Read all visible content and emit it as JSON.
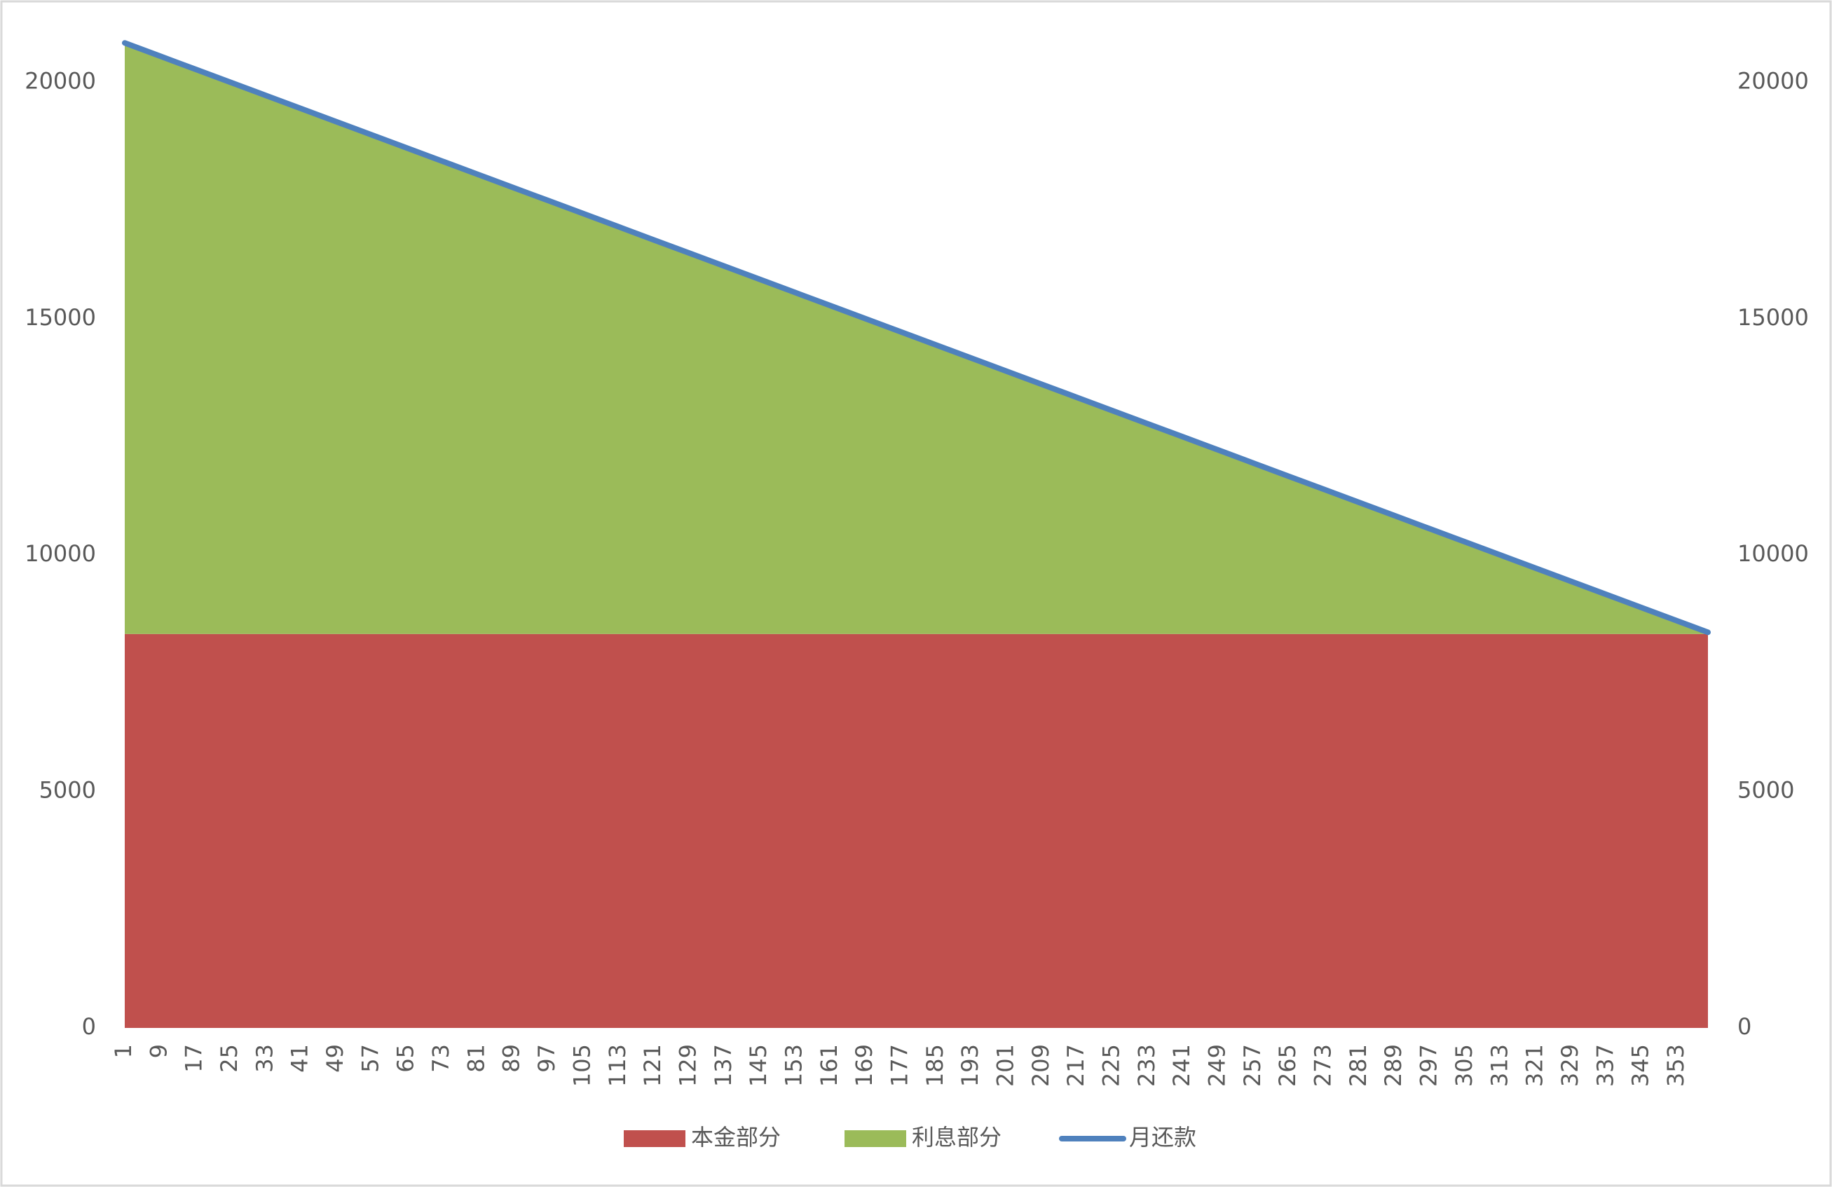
{
  "chart_data": {
    "type": "area",
    "stacked": true,
    "x": [
      1,
      9,
      17,
      25,
      33,
      41,
      49,
      57,
      65,
      73,
      81,
      89,
      97,
      105,
      113,
      121,
      129,
      137,
      145,
      153,
      161,
      169,
      177,
      185,
      193,
      201,
      209,
      217,
      225,
      233,
      241,
      249,
      257,
      265,
      273,
      281,
      289,
      297,
      305,
      313,
      321,
      329,
      337,
      345,
      353,
      360
    ],
    "xlim": [
      1,
      360
    ],
    "xticks": [
      1,
      9,
      17,
      25,
      33,
      41,
      49,
      57,
      65,
      73,
      81,
      89,
      97,
      105,
      113,
      121,
      129,
      137,
      145,
      153,
      161,
      169,
      177,
      185,
      193,
      201,
      209,
      217,
      225,
      233,
      241,
      249,
      257,
      265,
      273,
      281,
      289,
      297,
      305,
      313,
      321,
      329,
      337,
      345,
      353
    ],
    "ylim": [
      0,
      21000
    ],
    "yticks": [
      0,
      5000,
      10000,
      15000,
      20000
    ],
    "y2lim": [
      0,
      21000
    ],
    "y2ticks": [
      0,
      5000,
      10000,
      15000,
      20000
    ],
    "legend": "bottom",
    "series": [
      {
        "name": "本金部分",
        "color": "#C0504D",
        "type": "area",
        "values": [
          8333,
          8333,
          8333,
          8333,
          8333,
          8333,
          8333,
          8333,
          8333,
          8333,
          8333,
          8333,
          8333,
          8333,
          8333,
          8333,
          8333,
          8333,
          8333,
          8333,
          8333,
          8333,
          8333,
          8333,
          8333,
          8333,
          8333,
          8333,
          8333,
          8333,
          8333,
          8333,
          8333,
          8333,
          8333,
          8333,
          8333,
          8333,
          8333,
          8333,
          8333,
          8333,
          8333,
          8333,
          8333,
          8333
        ]
      },
      {
        "name": "利息部分",
        "color": "#9BBB59",
        "type": "area",
        "values": [
          12500,
          12222,
          11944,
          11667,
          11389,
          11111,
          10833,
          10556,
          10278,
          10000,
          9722,
          9444,
          9167,
          8889,
          8611,
          8333,
          8056,
          7778,
          7500,
          7222,
          6944,
          6667,
          6389,
          6111,
          5833,
          5556,
          5278,
          5000,
          4722,
          4444,
          4167,
          3889,
          3611,
          3333,
          3056,
          2778,
          2500,
          2222,
          1944,
          1667,
          1389,
          1111,
          833,
          556,
          278,
          35
        ]
      },
      {
        "name": "月还款",
        "color": "#4F81BD",
        "type": "line",
        "axis": "y2",
        "values": [
          20833,
          20555,
          20277,
          20000,
          19722,
          19444,
          19166,
          18889,
          18611,
          18333,
          18055,
          17777,
          17500,
          17222,
          16944,
          16666,
          16389,
          16111,
          15833,
          15555,
          15277,
          15000,
          14722,
          14444,
          14166,
          13889,
          13611,
          13333,
          13055,
          12777,
          12500,
          12222,
          11944,
          11666,
          11389,
          11111,
          10833,
          10555,
          10277,
          10000,
          9722,
          9444,
          9166,
          8889,
          8611,
          8368
        ]
      }
    ]
  }
}
